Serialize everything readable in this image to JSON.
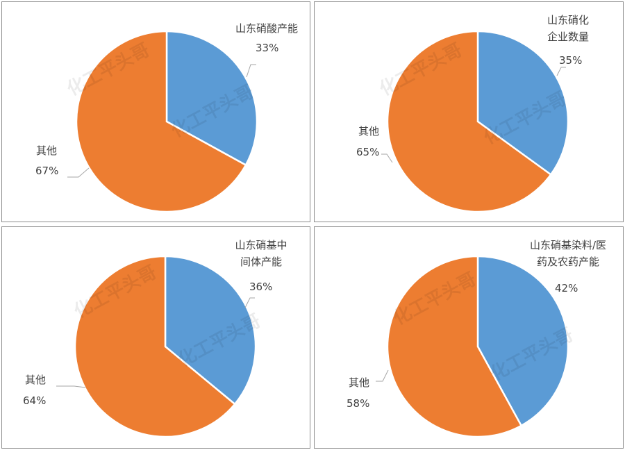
{
  "watermark": "化工平头哥",
  "colors": {
    "highlight": "#5b9bd5",
    "other": "#ed7d31"
  },
  "chart_data": [
    {
      "type": "pie",
      "slices": [
        {
          "label": "山东硝酸产能",
          "value": 33,
          "display": "33%"
        },
        {
          "label": "其他",
          "value": 67,
          "display": "67%"
        }
      ]
    },
    {
      "type": "pie",
      "slices": [
        {
          "label": "山东硝化\n企业数量",
          "value": 35,
          "display": "35%"
        },
        {
          "label": "其他",
          "value": 65,
          "display": "65%"
        }
      ]
    },
    {
      "type": "pie",
      "slices": [
        {
          "label": "山东硝基中\n间体产能",
          "value": 36,
          "display": "36%"
        },
        {
          "label": "其他",
          "value": 64,
          "display": "64%"
        }
      ]
    },
    {
      "type": "pie",
      "slices": [
        {
          "label": "山东硝基染料/医\n药及农药产能",
          "value": 42,
          "display": "42%"
        },
        {
          "label": "其他",
          "value": 58,
          "display": "58%"
        }
      ]
    }
  ]
}
